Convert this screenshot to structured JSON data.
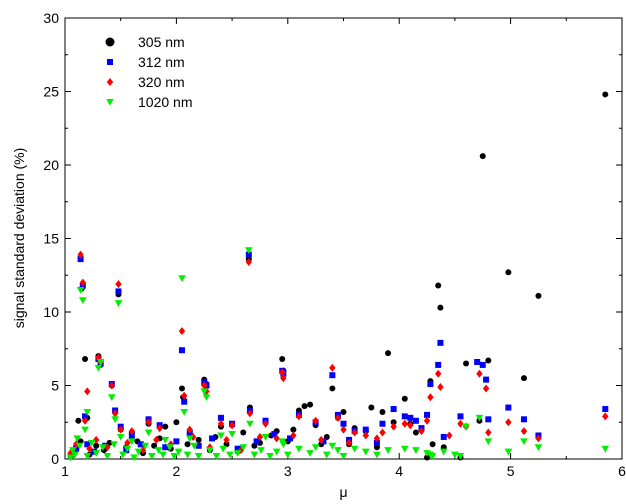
{
  "chart_data": {
    "type": "scatter",
    "xlabel": "μ",
    "ylabel": "signal standard deviation (%)",
    "xlim": [
      1,
      6
    ],
    "ylim": [
      0,
      30
    ],
    "x_ticks": [
      "1",
      "2",
      "3",
      "4",
      "5",
      "6"
    ],
    "y_ticks": [
      "0",
      "5",
      "10",
      "15",
      "20",
      "25",
      "30"
    ],
    "grid": false,
    "legend_position": "top-left",
    "series": [
      {
        "name": "305 nm",
        "color": "#000000",
        "marker": "circle",
        "points": [
          [
            1.12,
            2.6
          ],
          [
            1.15,
            11.6
          ],
          [
            1.18,
            6.8
          ],
          [
            1.2,
            2.8
          ],
          [
            1.3,
            7.0
          ],
          [
            1.32,
            6.4
          ],
          [
            1.42,
            5.0
          ],
          [
            1.45,
            3.2
          ],
          [
            1.48,
            11.2
          ],
          [
            1.5,
            2.0
          ],
          [
            1.6,
            1.8
          ],
          [
            1.75,
            2.4
          ],
          [
            1.9,
            2.2
          ],
          [
            2.0,
            2.5
          ],
          [
            2.05,
            4.8
          ],
          [
            2.06,
            4.2
          ],
          [
            2.12,
            1.7
          ],
          [
            2.25,
            5.4
          ],
          [
            2.27,
            5.1
          ],
          [
            2.4,
            2.2
          ],
          [
            2.5,
            2.3
          ],
          [
            2.65,
            13.6
          ],
          [
            2.66,
            3.5
          ],
          [
            2.8,
            2.6
          ],
          [
            2.95,
            6.8
          ],
          [
            2.96,
            6.0
          ],
          [
            3.1,
            3.3
          ],
          [
            3.15,
            3.6
          ],
          [
            3.2,
            3.7
          ],
          [
            3.25,
            2.3
          ],
          [
            3.4,
            4.8
          ],
          [
            3.45,
            2.8
          ],
          [
            3.5,
            3.2
          ],
          [
            3.6,
            2.1
          ],
          [
            3.75,
            3.5
          ],
          [
            3.85,
            3.2
          ],
          [
            3.9,
            7.2
          ],
          [
            3.95,
            2.5
          ],
          [
            4.05,
            4.1
          ],
          [
            4.15,
            1.8
          ],
          [
            4.25,
            0.1
          ],
          [
            4.28,
            5.3
          ],
          [
            4.35,
            11.8
          ],
          [
            4.37,
            10.3
          ],
          [
            4.55,
            0.1
          ],
          [
            4.6,
            6.5
          ],
          [
            4.72,
            2.6
          ],
          [
            4.75,
            20.6
          ],
          [
            4.8,
            6.7
          ],
          [
            4.98,
            12.7
          ],
          [
            5.12,
            5.5
          ],
          [
            5.25,
            11.1
          ],
          [
            5.85,
            24.8
          ],
          [
            1.05,
            0.2
          ],
          [
            1.08,
            0.5
          ],
          [
            1.1,
            0.8
          ],
          [
            1.14,
            1.2
          ],
          [
            1.22,
            0.3
          ],
          [
            1.28,
            0.9
          ],
          [
            1.35,
            0.6
          ],
          [
            1.4,
            1.1
          ],
          [
            1.55,
            0.8
          ],
          [
            1.65,
            1.2
          ],
          [
            1.7,
            0.4
          ],
          [
            1.8,
            0.9
          ],
          [
            1.85,
            1.4
          ],
          [
            1.95,
            0.7
          ],
          [
            2.1,
            1.0
          ],
          [
            2.2,
            1.3
          ],
          [
            2.3,
            0.6
          ],
          [
            2.35,
            1.5
          ],
          [
            2.45,
            1.0
          ],
          [
            2.55,
            0.5
          ],
          [
            2.6,
            1.8
          ],
          [
            2.7,
            0.9
          ],
          [
            2.75,
            1.1
          ],
          [
            2.85,
            1.6
          ],
          [
            2.9,
            1.9
          ],
          [
            3.0,
            1.2
          ],
          [
            3.05,
            2.0
          ],
          [
            3.3,
            1.0
          ],
          [
            3.35,
            1.5
          ],
          [
            3.55,
            1.0
          ],
          [
            3.7,
            1.9
          ],
          [
            3.8,
            0.8
          ],
          [
            4.1,
            2.4
          ],
          [
            4.3,
            1.0
          ],
          [
            4.4,
            0.8
          ]
        ]
      },
      {
        "name": "312 nm",
        "color": "#0000ff",
        "marker": "square",
        "points": [
          [
            1.14,
            13.6
          ],
          [
            1.16,
            11.8
          ],
          [
            1.18,
            2.9
          ],
          [
            1.3,
            6.8
          ],
          [
            1.32,
            6.5
          ],
          [
            1.42,
            5.1
          ],
          [
            1.45,
            3.3
          ],
          [
            1.48,
            11.4
          ],
          [
            1.5,
            2.2
          ],
          [
            1.6,
            1.6
          ],
          [
            1.75,
            2.7
          ],
          [
            1.85,
            2.3
          ],
          [
            2.05,
            7.4
          ],
          [
            2.07,
            3.9
          ],
          [
            2.12,
            1.8
          ],
          [
            2.25,
            5.2
          ],
          [
            2.27,
            5.0
          ],
          [
            2.4,
            2.8
          ],
          [
            2.5,
            2.4
          ],
          [
            2.65,
            13.9
          ],
          [
            2.66,
            3.3
          ],
          [
            2.8,
            2.6
          ],
          [
            2.95,
            6.0
          ],
          [
            2.96,
            5.8
          ],
          [
            3.1,
            3.0
          ],
          [
            3.25,
            2.5
          ],
          [
            3.4,
            5.7
          ],
          [
            3.45,
            3.0
          ],
          [
            3.5,
            2.4
          ],
          [
            3.6,
            1.9
          ],
          [
            3.7,
            2.0
          ],
          [
            3.85,
            2.4
          ],
          [
            3.95,
            3.4
          ],
          [
            4.05,
            2.9
          ],
          [
            4.1,
            2.8
          ],
          [
            4.15,
            2.6
          ],
          [
            4.25,
            3.0
          ],
          [
            4.28,
            5.1
          ],
          [
            4.35,
            6.4
          ],
          [
            4.37,
            7.9
          ],
          [
            4.55,
            2.9
          ],
          [
            4.7,
            6.6
          ],
          [
            4.75,
            6.4
          ],
          [
            4.78,
            5.4
          ],
          [
            4.8,
            2.7
          ],
          [
            4.98,
            3.5
          ],
          [
            5.12,
            2.7
          ],
          [
            5.25,
            1.6
          ],
          [
            5.85,
            3.4
          ],
          [
            1.06,
            0.3
          ],
          [
            1.1,
            0.7
          ],
          [
            1.2,
            1.0
          ],
          [
            1.26,
            0.5
          ],
          [
            1.36,
            0.9
          ],
          [
            1.55,
            0.6
          ],
          [
            1.68,
            1.0
          ],
          [
            1.9,
            0.8
          ],
          [
            2.0,
            1.2
          ],
          [
            2.2,
            0.9
          ],
          [
            2.32,
            1.4
          ],
          [
            2.55,
            0.7
          ],
          [
            2.72,
            1.2
          ],
          [
            2.88,
            1.7
          ],
          [
            3.02,
            1.4
          ],
          [
            3.32,
            1.2
          ],
          [
            3.55,
            1.3
          ],
          [
            3.8,
            1.1
          ],
          [
            4.2,
            2.1
          ],
          [
            4.4,
            1.5
          ]
        ]
      },
      {
        "name": "320 nm",
        "color": "#ff0000",
        "marker": "diamond",
        "points": [
          [
            1.14,
            13.9
          ],
          [
            1.16,
            12.0
          ],
          [
            1.18,
            2.6
          ],
          [
            1.2,
            4.6
          ],
          [
            1.3,
            6.9
          ],
          [
            1.32,
            6.6
          ],
          [
            1.42,
            5.0
          ],
          [
            1.45,
            3.1
          ],
          [
            1.48,
            11.9
          ],
          [
            1.5,
            2.0
          ],
          [
            1.6,
            1.9
          ],
          [
            1.75,
            2.5
          ],
          [
            1.85,
            2.1
          ],
          [
            2.05,
            8.7
          ],
          [
            2.07,
            4.3
          ],
          [
            2.12,
            2.0
          ],
          [
            2.25,
            5.0
          ],
          [
            2.27,
            4.6
          ],
          [
            2.4,
            2.4
          ],
          [
            2.5,
            2.3
          ],
          [
            2.65,
            13.4
          ],
          [
            2.66,
            3.1
          ],
          [
            2.8,
            2.4
          ],
          [
            2.95,
            5.9
          ],
          [
            2.96,
            5.5
          ],
          [
            3.1,
            2.9
          ],
          [
            3.25,
            2.6
          ],
          [
            3.4,
            6.2
          ],
          [
            3.45,
            2.8
          ],
          [
            3.5,
            2.0
          ],
          [
            3.6,
            1.8
          ],
          [
            3.7,
            1.6
          ],
          [
            3.85,
            1.8
          ],
          [
            3.95,
            2.2
          ],
          [
            4.05,
            2.4
          ],
          [
            4.1,
            2.3
          ],
          [
            4.25,
            2.6
          ],
          [
            4.28,
            4.2
          ],
          [
            4.35,
            5.8
          ],
          [
            4.37,
            4.9
          ],
          [
            4.55,
            2.4
          ],
          [
            4.6,
            2.2
          ],
          [
            4.72,
            5.8
          ],
          [
            4.78,
            4.8
          ],
          [
            4.8,
            1.8
          ],
          [
            4.98,
            2.5
          ],
          [
            5.12,
            1.9
          ],
          [
            5.25,
            1.4
          ],
          [
            5.85,
            2.9
          ],
          [
            1.05,
            0.4
          ],
          [
            1.1,
            1.0
          ],
          [
            1.22,
            0.7
          ],
          [
            1.28,
            1.3
          ],
          [
            1.38,
            0.8
          ],
          [
            1.56,
            1.1
          ],
          [
            1.7,
            0.6
          ],
          [
            1.82,
            1.3
          ],
          [
            1.95,
            1.0
          ],
          [
            2.15,
            1.5
          ],
          [
            2.3,
            0.8
          ],
          [
            2.45,
            1.3
          ],
          [
            2.58,
            0.6
          ],
          [
            2.75,
            1.5
          ],
          [
            2.9,
            1.4
          ],
          [
            3.05,
            1.6
          ],
          [
            3.3,
            1.3
          ],
          [
            3.55,
            1.1
          ],
          [
            3.8,
            1.4
          ],
          [
            4.2,
            1.9
          ],
          [
            4.45,
            1.6
          ]
        ]
      },
      {
        "name": "1020 nm",
        "color": "#00ee00",
        "marker": "triangle-down",
        "points": [
          [
            1.14,
            11.5
          ],
          [
            1.16,
            10.8
          ],
          [
            1.18,
            2.0
          ],
          [
            1.2,
            3.2
          ],
          [
            1.3,
            6.2
          ],
          [
            1.32,
            6.6
          ],
          [
            1.42,
            4.2
          ],
          [
            1.45,
            2.7
          ],
          [
            1.48,
            10.6
          ],
          [
            1.5,
            1.5
          ],
          [
            1.6,
            1.2
          ],
          [
            1.75,
            1.8
          ],
          [
            1.9,
            1.3
          ],
          [
            2.05,
            12.3
          ],
          [
            2.07,
            3.2
          ],
          [
            2.12,
            1.4
          ],
          [
            2.25,
            4.6
          ],
          [
            2.27,
            4.2
          ],
          [
            2.4,
            1.6
          ],
          [
            2.5,
            1.7
          ],
          [
            2.65,
            14.2
          ],
          [
            2.66,
            2.4
          ],
          [
            2.8,
            1.5
          ],
          [
            2.95,
            1.2
          ],
          [
            2.96,
            1.0
          ],
          [
            3.1,
            0.7
          ],
          [
            3.25,
            0.8
          ],
          [
            3.4,
            0.9
          ],
          [
            3.45,
            0.6
          ],
          [
            3.6,
            0.7
          ],
          [
            3.7,
            0.5
          ],
          [
            3.9,
            0.6
          ],
          [
            4.05,
            0.7
          ],
          [
            4.15,
            0.6
          ],
          [
            4.25,
            0.4
          ],
          [
            4.28,
            0.3
          ],
          [
            4.4,
            0.5
          ],
          [
            4.55,
            0.2
          ],
          [
            4.6,
            2.2
          ],
          [
            4.72,
            2.8
          ],
          [
            4.8,
            1.2
          ],
          [
            4.98,
            0.5
          ],
          [
            5.12,
            1.2
          ],
          [
            5.25,
            0.8
          ],
          [
            5.85,
            0.7
          ],
          [
            1.05,
            0.1
          ],
          [
            1.07,
            0.6
          ],
          [
            1.09,
            0.3
          ],
          [
            1.11,
            1.4
          ],
          [
            1.13,
            0.9
          ],
          [
            1.2,
            0.2
          ],
          [
            1.24,
            1.1
          ],
          [
            1.28,
            0.4
          ],
          [
            1.34,
            0.8
          ],
          [
            1.38,
            0.2
          ],
          [
            1.44,
            1.0
          ],
          [
            1.52,
            0.3
          ],
          [
            1.56,
            0.7
          ],
          [
            1.62,
            0.1
          ],
          [
            1.66,
            0.5
          ],
          [
            1.72,
            0.9
          ],
          [
            1.78,
            0.2
          ],
          [
            1.84,
            0.6
          ],
          [
            1.88,
            0.3
          ],
          [
            1.94,
            0.8
          ],
          [
            1.98,
            0.2
          ],
          [
            2.02,
            0.5
          ],
          [
            2.1,
            0.3
          ],
          [
            2.16,
            0.9
          ],
          [
            2.2,
            0.2
          ],
          [
            2.3,
            0.6
          ],
          [
            2.36,
            0.2
          ],
          [
            2.42,
            0.7
          ],
          [
            2.48,
            0.3
          ],
          [
            2.55,
            0.4
          ],
          [
            2.6,
            0.8
          ],
          [
            2.7,
            0.3
          ],
          [
            2.76,
            0.6
          ],
          [
            2.84,
            0.2
          ],
          [
            2.9,
            0.5
          ],
          [
            3.0,
            0.3
          ],
          [
            3.2,
            0.4
          ],
          [
            3.35,
            0.3
          ],
          [
            3.5,
            0.2
          ],
          [
            3.8,
            0.3
          ],
          [
            4.3,
            0.2
          ],
          [
            4.5,
            0.3
          ]
        ]
      }
    ]
  }
}
